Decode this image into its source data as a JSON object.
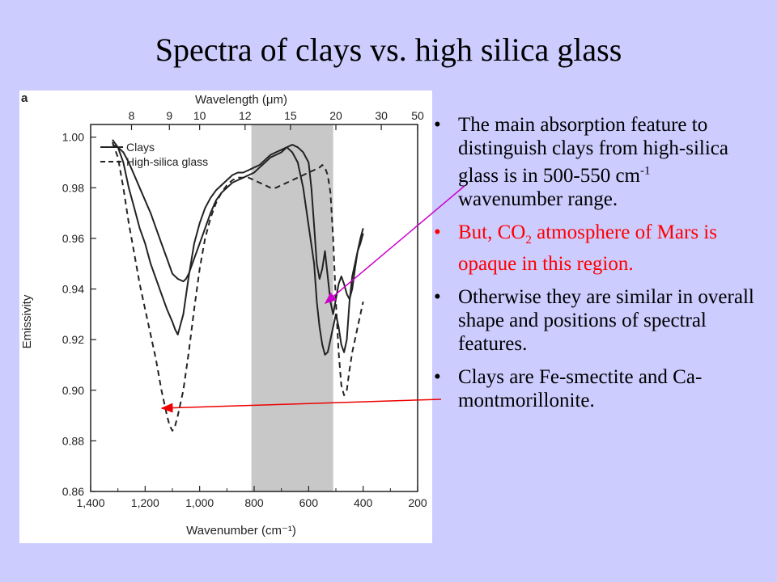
{
  "slide": {
    "title": "Spectra of clays vs. high silica glass"
  },
  "bullets": [
    {
      "parts": [
        "The main absorption feature to distinguish clays from high-silica glass is in 500-550 cm",
        "-1",
        " wavenumber range."
      ],
      "color": "#000000"
    },
    {
      "parts": [
        "But, CO",
        "2",
        " atmosphere of Mars is opaque in this region."
      ],
      "color": "#ff0000"
    },
    {
      "parts": [
        "Otherwise they are similar in overall shape and positions of spectral features."
      ],
      "color": "#000000"
    },
    {
      "parts": [
        "Clays are Fe-smectite and Ca-montmorillonite."
      ],
      "color": "#000000"
    }
  ],
  "chart_data": {
    "type": "line",
    "panel_label": "a",
    "top_axis_label": "Wavelength (μm)",
    "xlabel": "Wavenumber (cm⁻¹)",
    "ylabel": "Emissivity",
    "xlim": [
      1400,
      200
    ],
    "ylim": [
      0.86,
      1.005
    ],
    "x_ticks": [
      {
        "value": 1400,
        "label": "1,400"
      },
      {
        "value": 1200,
        "label": "1,200"
      },
      {
        "value": 1000,
        "label": "1,000"
      },
      {
        "value": 800,
        "label": "800"
      },
      {
        "value": 600,
        "label": "600"
      },
      {
        "value": 400,
        "label": "400"
      },
      {
        "value": 200,
        "label": "200"
      }
    ],
    "y_ticks": [
      {
        "value": 0.86,
        "label": "0.86"
      },
      {
        "value": 0.88,
        "label": "0.88"
      },
      {
        "value": 0.9,
        "label": "0.90"
      },
      {
        "value": 0.92,
        "label": "0.92"
      },
      {
        "value": 0.94,
        "label": "0.94"
      },
      {
        "value": 0.96,
        "label": "0.96"
      },
      {
        "value": 0.98,
        "label": "0.98"
      },
      {
        "value": 1.0,
        "label": "1.00"
      }
    ],
    "top_ticks": [
      {
        "value": 8,
        "label": "8"
      },
      {
        "value": 9,
        "label": "9"
      },
      {
        "value": 10,
        "label": "10"
      },
      {
        "value": 12,
        "label": "12"
      },
      {
        "value": 15,
        "label": "15"
      },
      {
        "value": 20,
        "label": "20"
      },
      {
        "value": 30,
        "label": "30"
      },
      {
        "value": 50,
        "label": "50"
      }
    ],
    "shaded_region": [
      810,
      510
    ],
    "legend_position": "top-left",
    "series": [
      {
        "name": "Clays",
        "style": "solid",
        "x": [
          1320,
          1300,
          1280,
          1260,
          1240,
          1220,
          1200,
          1180,
          1160,
          1140,
          1120,
          1100,
          1090,
          1080,
          1060,
          1040,
          1020,
          1000,
          980,
          960,
          940,
          920,
          900,
          880,
          860,
          840,
          820,
          800,
          780,
          760,
          740,
          720,
          700,
          680,
          660,
          640,
          620,
          600,
          580,
          570,
          560,
          550,
          540,
          530,
          520,
          510,
          500,
          490,
          480,
          470,
          460,
          450,
          440,
          430,
          420,
          410,
          400
        ],
        "y": [
          0.999,
          0.996,
          0.99,
          0.98,
          0.972,
          0.964,
          0.958,
          0.95,
          0.944,
          0.938,
          0.932,
          0.927,
          0.924,
          0.922,
          0.93,
          0.945,
          0.958,
          0.966,
          0.972,
          0.976,
          0.979,
          0.981,
          0.983,
          0.985,
          0.986,
          0.986,
          0.987,
          0.988,
          0.989,
          0.991,
          0.993,
          0.994,
          0.995,
          0.996,
          0.994,
          0.99,
          0.98,
          0.965,
          0.95,
          0.935,
          0.925,
          0.918,
          0.914,
          0.915,
          0.92,
          0.925,
          0.93,
          0.925,
          0.918,
          0.915,
          0.92,
          0.935,
          0.945,
          0.95,
          0.955,
          0.958,
          0.962
        ]
      },
      {
        "name": "",
        "style": "solid",
        "x": [
          1320,
          1300,
          1280,
          1260,
          1240,
          1220,
          1200,
          1180,
          1160,
          1140,
          1120,
          1100,
          1080,
          1060,
          1050,
          1040,
          1020,
          1000,
          980,
          960,
          940,
          920,
          900,
          880,
          860,
          840,
          820,
          800,
          780,
          760,
          740,
          720,
          700,
          680,
          660,
          640,
          620,
          600,
          590,
          580,
          570,
          560,
          550,
          540,
          530,
          520,
          510,
          500,
          490,
          480,
          470,
          460,
          450,
          440,
          430,
          420,
          410,
          400
        ],
        "y": [
          0.997,
          0.996,
          0.994,
          0.99,
          0.985,
          0.98,
          0.975,
          0.97,
          0.964,
          0.958,
          0.952,
          0.946,
          0.944,
          0.943,
          0.944,
          0.946,
          0.952,
          0.958,
          0.964,
          0.97,
          0.975,
          0.978,
          0.98,
          0.982,
          0.983,
          0.984,
          0.985,
          0.986,
          0.988,
          0.99,
          0.992,
          0.993,
          0.994,
          0.996,
          0.997,
          0.996,
          0.994,
          0.99,
          0.98,
          0.965,
          0.95,
          0.944,
          0.948,
          0.955,
          0.945,
          0.935,
          0.93,
          0.936,
          0.942,
          0.945,
          0.942,
          0.938,
          0.936,
          0.94,
          0.948,
          0.955,
          0.96,
          0.964
        ]
      },
      {
        "name": "High-silica glass",
        "style": "dashed",
        "x": [
          1320,
          1300,
          1280,
          1260,
          1240,
          1220,
          1200,
          1180,
          1160,
          1140,
          1120,
          1110,
          1100,
          1090,
          1080,
          1060,
          1040,
          1020,
          1000,
          980,
          960,
          940,
          920,
          900,
          880,
          860,
          840,
          820,
          800,
          780,
          760,
          740,
          720,
          700,
          680,
          660,
          640,
          620,
          600,
          580,
          560,
          550,
          540,
          530,
          520,
          510,
          500,
          490,
          480,
          470,
          460,
          450,
          440,
          430,
          420,
          410,
          400
        ],
        "y": [
          0.998,
          0.992,
          0.98,
          0.966,
          0.954,
          0.942,
          0.932,
          0.922,
          0.912,
          0.9,
          0.89,
          0.886,
          0.884,
          0.886,
          0.89,
          0.9,
          0.915,
          0.932,
          0.948,
          0.96,
          0.968,
          0.974,
          0.978,
          0.981,
          0.983,
          0.984,
          0.984,
          0.984,
          0.983,
          0.982,
          0.981,
          0.98,
          0.98,
          0.981,
          0.982,
          0.983,
          0.984,
          0.985,
          0.986,
          0.987,
          0.988,
          0.989,
          0.988,
          0.985,
          0.978,
          0.96,
          0.935,
          0.915,
          0.902,
          0.898,
          0.9,
          0.908,
          0.915,
          0.92,
          0.925,
          0.93,
          0.935
        ]
      }
    ]
  }
}
